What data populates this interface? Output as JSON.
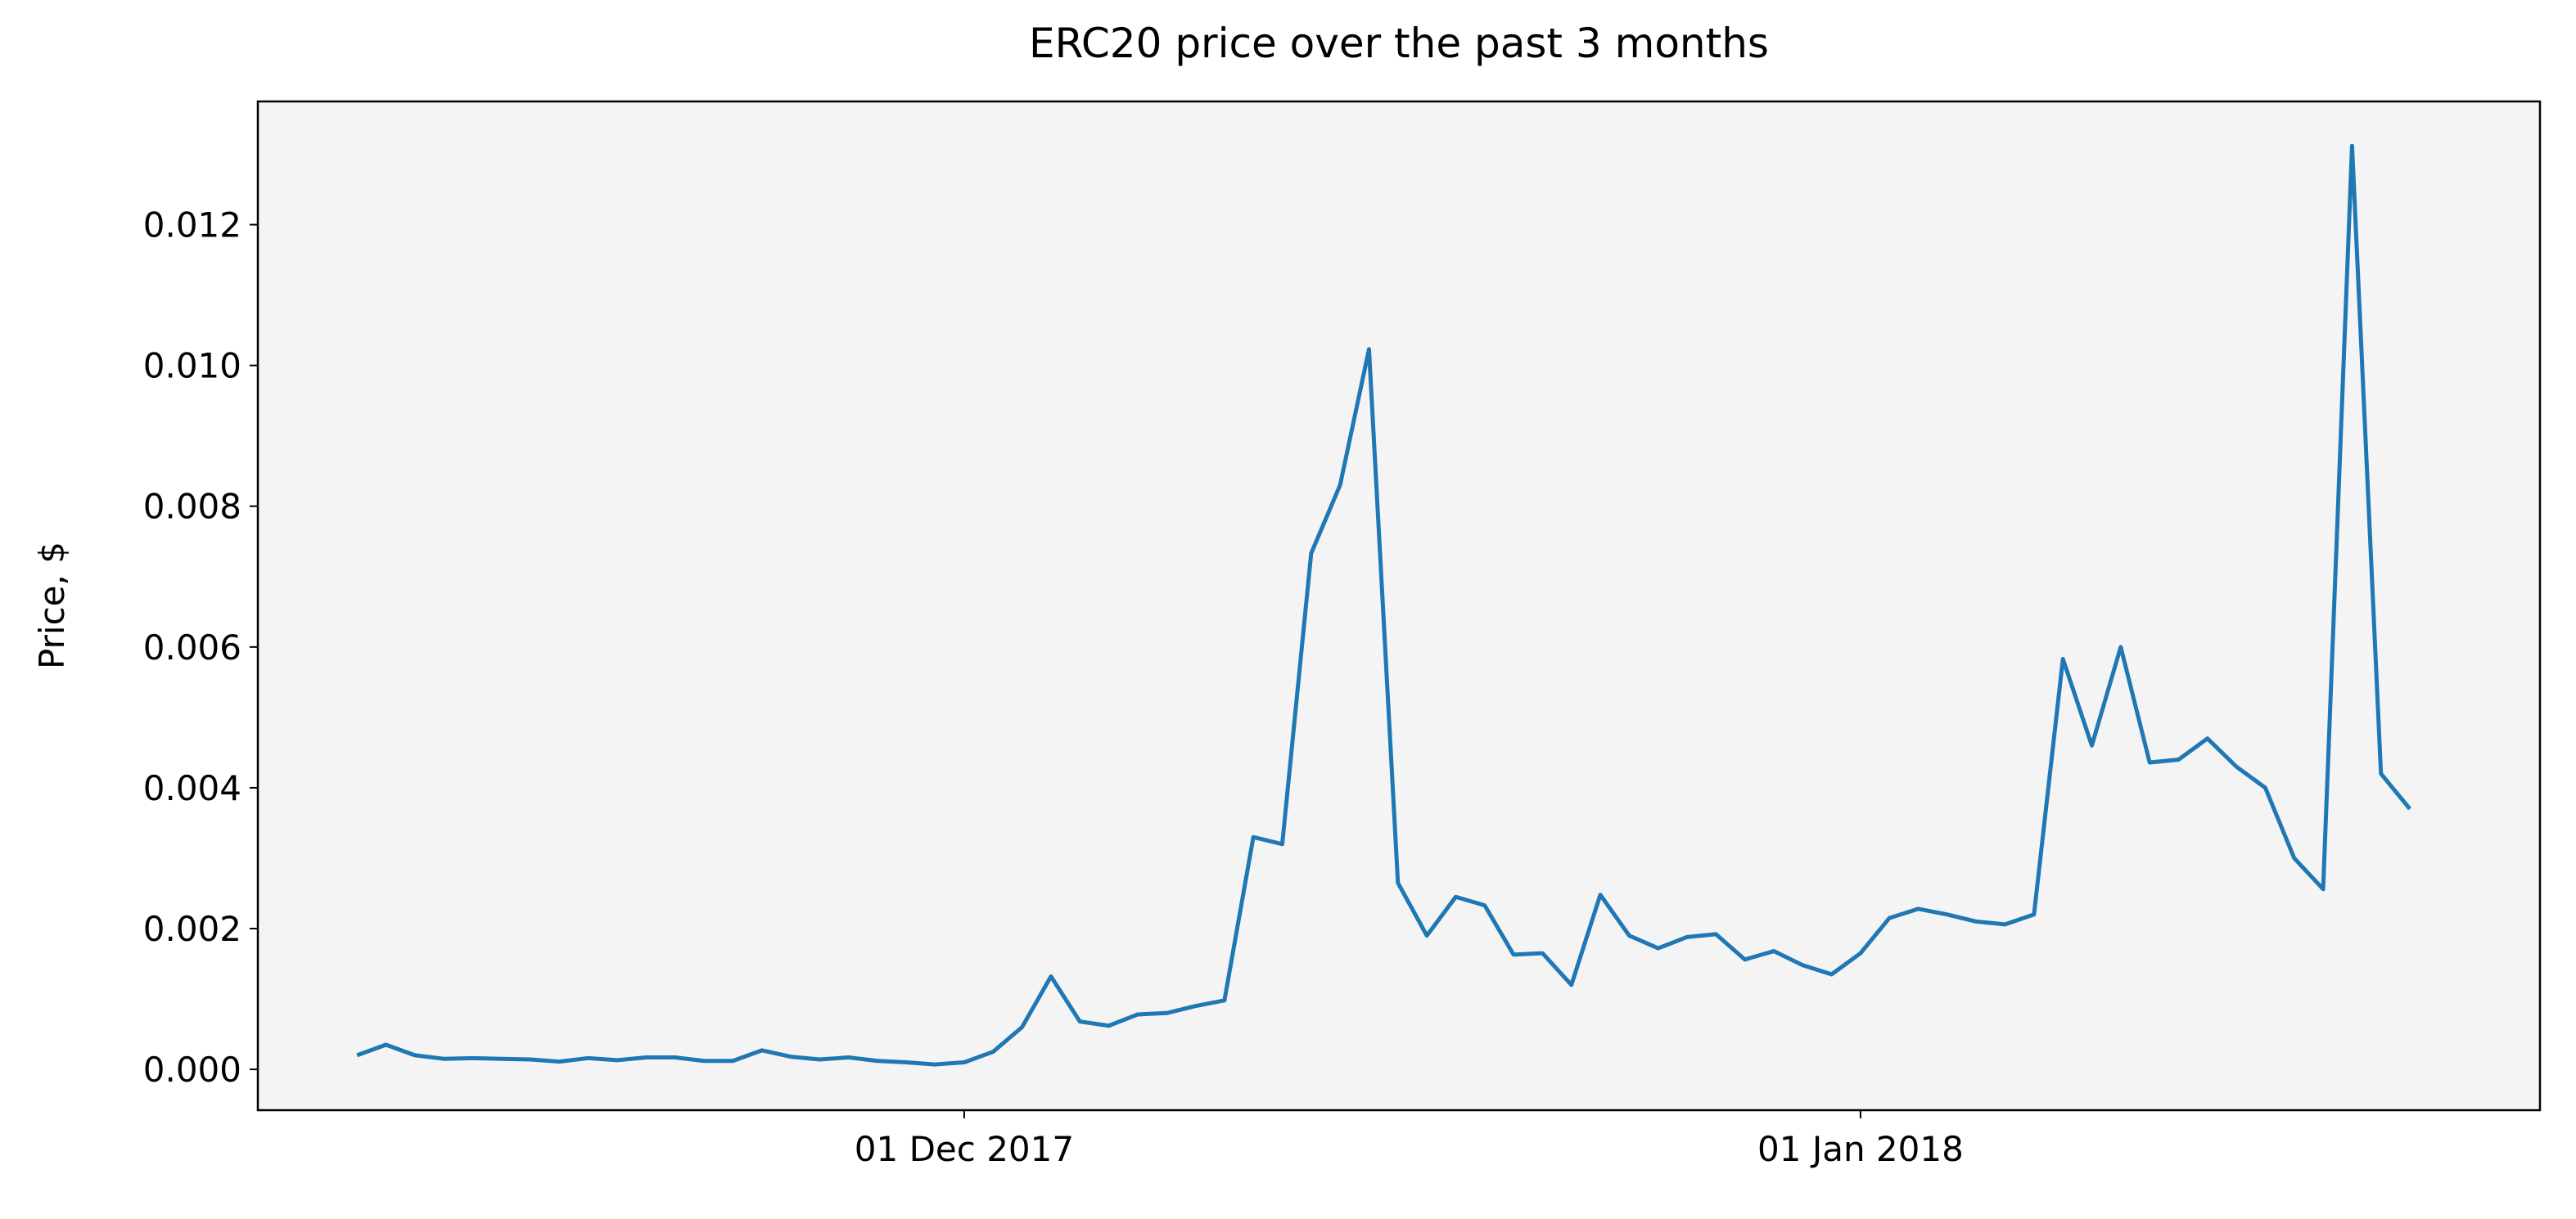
{
  "chart_data": {
    "type": "line",
    "title": "ERC20 price over the past 3 months",
    "ylabel": "Price, $",
    "x": [
      "2017-11-10",
      "2017-11-11",
      "2017-11-12",
      "2017-11-13",
      "2017-11-14",
      "2017-11-15",
      "2017-11-16",
      "2017-11-17",
      "2017-11-18",
      "2017-11-19",
      "2017-11-20",
      "2017-11-21",
      "2017-11-22",
      "2017-11-23",
      "2017-11-24",
      "2017-11-25",
      "2017-11-26",
      "2017-11-27",
      "2017-11-28",
      "2017-11-29",
      "2017-11-30",
      "2017-12-01",
      "2017-12-02",
      "2017-12-03",
      "2017-12-04",
      "2017-12-05",
      "2017-12-06",
      "2017-12-07",
      "2017-12-08",
      "2017-12-09",
      "2017-12-10",
      "2017-12-11",
      "2017-12-12",
      "2017-12-13",
      "2017-12-14",
      "2017-12-15",
      "2017-12-16",
      "2017-12-17",
      "2017-12-18",
      "2017-12-19",
      "2017-12-20",
      "2017-12-21",
      "2017-12-22",
      "2017-12-23",
      "2017-12-24",
      "2017-12-25",
      "2017-12-26",
      "2017-12-27",
      "2017-12-28",
      "2017-12-29",
      "2017-12-30",
      "2017-12-31",
      "2018-01-01",
      "2018-01-02",
      "2018-01-03",
      "2018-01-04",
      "2018-01-05",
      "2018-01-06",
      "2018-01-07",
      "2018-01-08",
      "2018-01-09",
      "2018-01-10",
      "2018-01-11",
      "2018-01-12",
      "2018-01-13",
      "2018-01-14",
      "2018-01-15",
      "2018-01-16",
      "2018-01-17",
      "2018-01-18",
      "2018-01-19",
      "2018-01-20"
    ],
    "series": [
      {
        "name": "ERC20",
        "color": "#1f77b4",
        "values": [
          0.0002,
          0.00035,
          0.0002,
          0.00015,
          0.00016,
          0.00015,
          0.00014,
          0.00011,
          0.00016,
          0.00013,
          0.00017,
          0.00017,
          0.00012,
          0.00012,
          0.00027,
          0.00018,
          0.00014,
          0.00017,
          0.00012,
          0.0001,
          7e-05,
          0.0001,
          0.00025,
          0.0006,
          0.00132,
          0.00068,
          0.00062,
          0.00078,
          0.0008,
          0.0009,
          0.00098,
          0.0033,
          0.0032,
          0.00733,
          0.0083,
          0.01023,
          0.00265,
          0.0019,
          0.00245,
          0.00233,
          0.00163,
          0.00165,
          0.0012,
          0.00248,
          0.0019,
          0.00172,
          0.00188,
          0.00192,
          0.00156,
          0.00168,
          0.00148,
          0.00135,
          0.00165,
          0.00215,
          0.00228,
          0.0022,
          0.0021,
          0.00206,
          0.0022,
          0.00583,
          0.0046,
          0.006,
          0.00436,
          0.0044,
          0.0047,
          0.0043,
          0.004,
          0.003,
          0.00256,
          0.01312,
          0.0042,
          0.0037
        ]
      }
    ],
    "xlim": [
      "2017-11-06T13:40",
      "2018-01-24T12:00"
    ],
    "xticks": [
      {
        "value": "2017-12-01",
        "label": "01 Dec 2017"
      },
      {
        "value": "2018-01-01",
        "label": "01 Jan 2018"
      }
    ],
    "ylim": [
      -0.00058,
      0.01375
    ],
    "yticks": [
      {
        "value": 0,
        "label": "0.000"
      },
      {
        "value": 0.002,
        "label": "0.002"
      },
      {
        "value": 0.004,
        "label": "0.004"
      },
      {
        "value": 0.006,
        "label": "0.006"
      },
      {
        "value": 0.008,
        "label": "0.008"
      },
      {
        "value": 0.01,
        "label": "0.010"
      },
      {
        "value": 0.012,
        "label": "0.012"
      }
    ],
    "background": "#f4f4f4"
  }
}
